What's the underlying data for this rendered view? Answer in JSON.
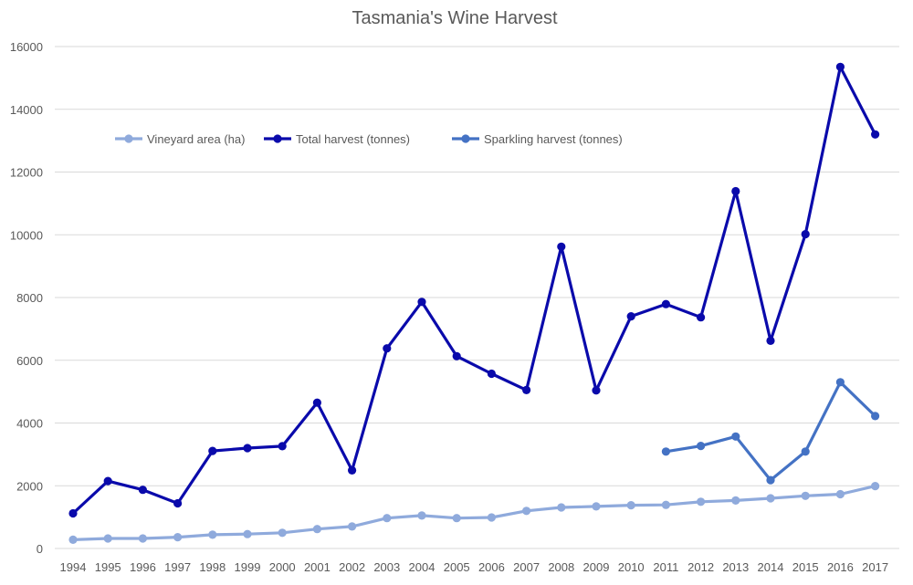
{
  "chart_data": {
    "type": "line",
    "title": "Tasmania's Wine Harvest",
    "xlabel": "",
    "ylabel": "",
    "ylim": [
      0,
      16000
    ],
    "y_ticks": [
      "0",
      "2000",
      "4000",
      "6000",
      "8000",
      "10000",
      "12000",
      "14000",
      "16000"
    ],
    "grid": "horizontal",
    "legend_position": "top-left",
    "categories": [
      "1994",
      "1995",
      "1996",
      "1997",
      "1998",
      "1999",
      "2000",
      "2001",
      "2002",
      "2003",
      "2004",
      "2005",
      "2006",
      "2007",
      "2008",
      "2009",
      "2010",
      "2011",
      "2012",
      "2013",
      "2014",
      "2015",
      "2016",
      "2017"
    ],
    "series": [
      {
        "name": "Vineyard area (ha)",
        "color": "#8faadc",
        "values": [
          280,
          320,
          320,
          360,
          440,
          460,
          500,
          620,
          700,
          970,
          1050,
          970,
          990,
          1200,
          1310,
          1340,
          1380,
          1390,
          1490,
          1530,
          1600,
          1680,
          1730,
          1990
        ]
      },
      {
        "name": "Total harvest (tonnes)",
        "color": "#0a0aab",
        "values": [
          1120,
          2150,
          1870,
          1440,
          3110,
          3200,
          3260,
          4650,
          2490,
          6380,
          7860,
          6130,
          5570,
          5050,
          9620,
          5040,
          7400,
          7790,
          7370,
          11390,
          6620,
          10020,
          15350,
          13200
        ]
      },
      {
        "name": "Sparkling harvest (tonnes)",
        "color": "#4472c4",
        "values": [
          null,
          null,
          null,
          null,
          null,
          null,
          null,
          null,
          null,
          null,
          null,
          null,
          null,
          null,
          null,
          null,
          null,
          3090,
          3270,
          3570,
          2180,
          3090,
          5300,
          4220
        ]
      }
    ]
  }
}
